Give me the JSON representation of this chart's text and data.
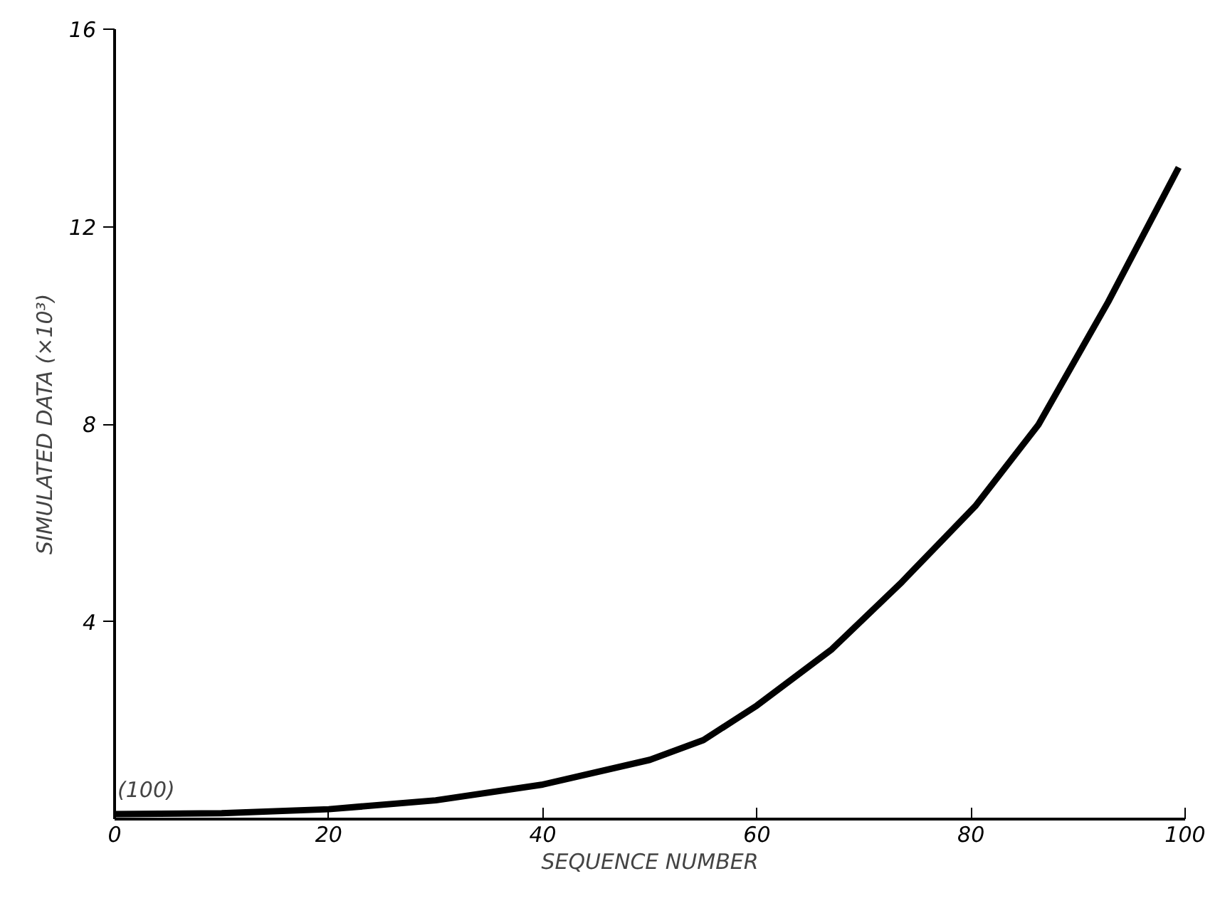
{
  "chart_data": {
    "type": "line",
    "xlabel": "SEQUENCE NUMBER",
    "ylabel": "SIMULATED DATA (×10³)",
    "x": [
      0,
      10,
      20,
      30,
      40,
      50,
      55,
      60,
      67,
      73.4,
      80.4,
      86.3,
      92.8,
      99.4
    ],
    "series": [
      {
        "color": "#000000",
        "values": [
          0.1,
          0.12,
          0.2,
          0.38,
          0.7,
          1.2,
          1.6,
          2.3,
          3.44,
          4.77,
          6.34,
          7.99,
          10.47,
          13.2
        ]
      }
    ],
    "xlim": [
      0,
      100
    ],
    "ylim": [
      0,
      16
    ],
    "xticks": [
      0,
      20,
      40,
      60,
      80,
      100
    ],
    "yticks": [
      4,
      8,
      12,
      16
    ],
    "annotations": [
      {
        "text": "(100)",
        "x": 0,
        "y": 0.1
      }
    ],
    "grid": false,
    "marker": "none",
    "line_style": "solid"
  }
}
